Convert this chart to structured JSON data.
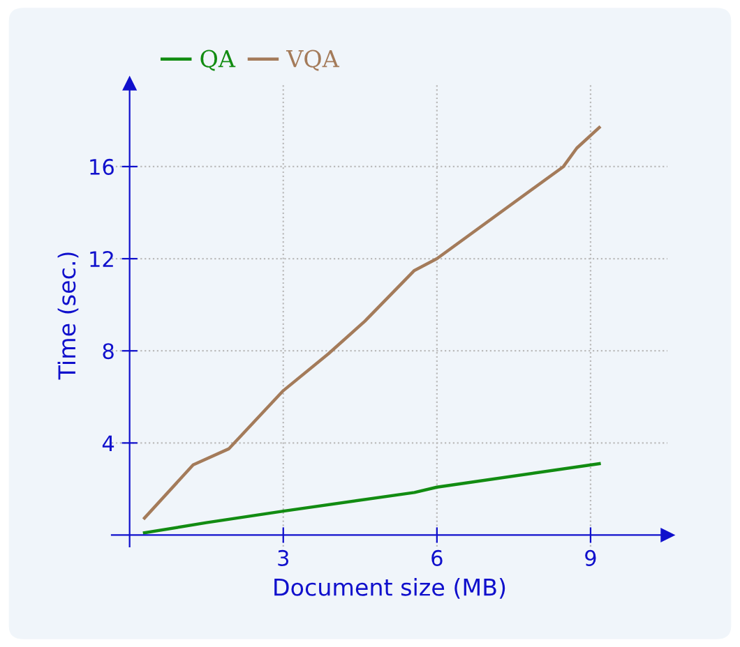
{
  "chart_data": {
    "type": "line",
    "xlabel": "Document size (MB)",
    "ylabel": "Time (sec.)",
    "xlim": [
      -0.35,
      10.5
    ],
    "ylim": [
      -0.5,
      19.6
    ],
    "xticks": [
      3,
      6,
      9
    ],
    "yticks": [
      4,
      8,
      12,
      16
    ],
    "grid": true,
    "legend": "top",
    "marker": "none",
    "line_style": "solid",
    "series": [
      {
        "name": "QA",
        "color": "#128c12",
        "x": [
          0.29,
          1.5,
          3.0,
          5.56,
          6.0,
          9.17
        ],
        "values": [
          0.1,
          0.54,
          1.04,
          1.85,
          2.08,
          3.1
        ]
      },
      {
        "name": "VQA",
        "color": "#a47b5a",
        "x": [
          0.29,
          1.24,
          1.94,
          3.0,
          3.88,
          4.59,
          5.56,
          6.0,
          8.47,
          8.73,
          9.17
        ],
        "values": [
          0.74,
          3.05,
          3.75,
          6.27,
          7.87,
          9.28,
          11.49,
          12.0,
          16.0,
          16.8,
          17.7
        ]
      }
    ]
  }
}
